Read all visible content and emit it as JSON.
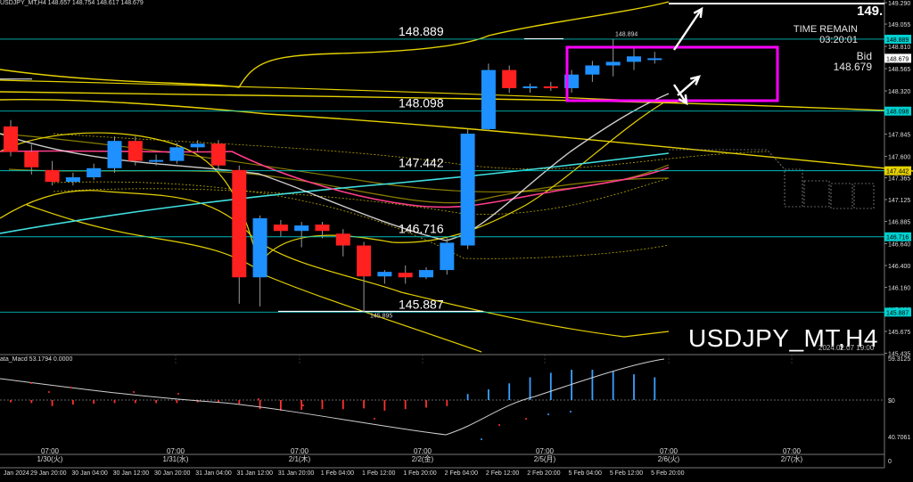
{
  "title_bar": "USDJPY_MT,H4  148.657 148.754 148.617 148.679",
  "symbol_watermark": "USDJPY_MT,H4",
  "watermark_date": "2024.02.07 19:00",
  "time_remain": {
    "label": "TIME REMAIN",
    "value": "03:20:01"
  },
  "bid": {
    "label": "Bid",
    "value": "148.679"
  },
  "big_price_cut": "149.",
  "macd_title": "ata_Macd 53.1794  0.0000",
  "colors": {
    "bull": "#1e90ff",
    "bear": "#ff2020",
    "level": "#00d0d0",
    "band": "#e6d200",
    "highlight": "#ff00ff",
    "ma_cyan": "#40e0e0",
    "ma_pink": "#ff3d8a",
    "ma_white": "#f0f0f0"
  },
  "chart_data": {
    "type": "candlestick",
    "price_axis_ticks": [
      "149.290",
      "149.055",
      "148.810",
      "148.565",
      "148.320",
      "148.085",
      "147.845",
      "147.600",
      "147.365",
      "147.125",
      "146.885",
      "146.640",
      "146.400",
      "146.160",
      "145.920",
      "145.675",
      "145.435"
    ],
    "macd_axis_ticks": [
      "59.3125",
      "$0",
      "40.7061",
      "0"
    ],
    "levels": [
      {
        "label": "148.889",
        "badge": "148.889"
      },
      {
        "label": "148.098",
        "badge": "148.098"
      },
      {
        "label": "147.442",
        "badge": "147.442"
      },
      {
        "label": "146.716",
        "badge": "146.716"
      },
      {
        "label": "145.887",
        "badge": "145.887"
      }
    ],
    "price_badges": [
      {
        "text": "148.679",
        "price": 148.679,
        "color": "#ffffff"
      },
      {
        "text": "148.889",
        "price": 148.889,
        "color": "#00d0d0"
      },
      {
        "text": "148.098",
        "price": 148.098,
        "color": "#00d0d0"
      },
      {
        "text": "147.442",
        "price": 147.442,
        "color": "#e6d200"
      },
      {
        "text": "146.716",
        "price": 146.716,
        "color": "#00d0d0"
      },
      {
        "text": "145.887",
        "price": 145.887,
        "color": "#00d0d0"
      }
    ],
    "annotations": {
      "high_label": "148.894",
      "low_label": "145.895"
    },
    "candles": [
      {
        "o": 147.93,
        "h": 148.0,
        "c": 147.65,
        "l": 147.6
      },
      {
        "o": 147.65,
        "h": 147.73,
        "c": 147.48,
        "l": 147.4
      },
      {
        "o": 147.45,
        "h": 147.55,
        "c": 147.32,
        "l": 147.28
      },
      {
        "o": 147.32,
        "h": 147.42,
        "c": 147.37,
        "l": 147.28
      },
      {
        "o": 147.37,
        "h": 147.52,
        "c": 147.47,
        "l": 147.34
      },
      {
        "o": 147.47,
        "h": 147.82,
        "c": 147.77,
        "l": 147.42
      },
      {
        "o": 147.77,
        "h": 147.82,
        "c": 147.55,
        "l": 147.5
      },
      {
        "o": 147.55,
        "h": 147.62,
        "c": 147.56,
        "l": 147.5
      },
      {
        "o": 147.55,
        "h": 147.75,
        "c": 147.7,
        "l": 147.52
      },
      {
        "o": 147.7,
        "h": 147.78,
        "c": 147.74,
        "l": 147.65
      },
      {
        "o": 147.74,
        "h": 147.78,
        "c": 147.5,
        "l": 147.45
      },
      {
        "o": 147.45,
        "h": 147.5,
        "c": 146.27,
        "l": 145.98
      },
      {
        "o": 146.27,
        "h": 146.95,
        "c": 146.92,
        "l": 145.95
      },
      {
        "o": 146.85,
        "h": 146.9,
        "c": 146.78,
        "l": 146.72
      },
      {
        "o": 146.78,
        "h": 146.88,
        "c": 146.84,
        "l": 146.6
      },
      {
        "o": 146.85,
        "h": 146.88,
        "c": 146.78,
        "l": 146.7
      },
      {
        "o": 146.75,
        "h": 146.8,
        "c": 146.62,
        "l": 146.5
      },
      {
        "o": 146.62,
        "h": 146.66,
        "c": 146.28,
        "l": 145.89
      },
      {
        "o": 146.28,
        "h": 146.35,
        "c": 146.33,
        "l": 146.2
      },
      {
        "o": 146.32,
        "h": 146.4,
        "c": 146.27,
        "l": 146.2
      },
      {
        "o": 146.27,
        "h": 146.38,
        "c": 146.35,
        "l": 146.25
      },
      {
        "o": 146.35,
        "h": 146.7,
        "c": 146.65,
        "l": 146.3
      },
      {
        "o": 146.62,
        "h": 147.9,
        "c": 147.85,
        "l": 146.58
      },
      {
        "o": 147.9,
        "h": 148.62,
        "c": 148.55,
        "l": 147.88
      },
      {
        "o": 148.55,
        "h": 148.6,
        "c": 148.35,
        "l": 148.3
      },
      {
        "o": 148.35,
        "h": 148.4,
        "c": 148.37,
        "l": 148.3
      },
      {
        "o": 148.37,
        "h": 148.42,
        "c": 148.35,
        "l": 148.32
      },
      {
        "o": 148.35,
        "h": 148.55,
        "c": 148.5,
        "l": 148.3
      },
      {
        "o": 148.5,
        "h": 148.65,
        "c": 148.6,
        "l": 148.42
      },
      {
        "o": 148.6,
        "h": 148.894,
        "c": 148.64,
        "l": 148.48
      },
      {
        "o": 148.64,
        "h": 148.8,
        "c": 148.7,
        "l": 148.55
      },
      {
        "o": 148.66,
        "h": 148.75,
        "c": 148.679,
        "l": 148.62
      }
    ],
    "time_labels_top": [
      {
        "time": "07:00",
        "date": "1/30(火)"
      },
      {
        "time": "07:00",
        "date": "1/31(水)"
      },
      {
        "time": "07:00",
        "date": "2/1(木)"
      },
      {
        "time": "07:00",
        "date": "2/2(金)"
      },
      {
        "time": "07:00",
        "date": "2/5(月)"
      },
      {
        "time": "07:00",
        "date": "2/6(火)"
      },
      {
        "time": "07:00",
        "date": "2/7(水)"
      }
    ],
    "time_labels_bottom": [
      "Jan 2024",
      "29 Jan 20:00",
      "30 Jan 04:00",
      "30 Jan 12:00",
      "30 Jan 20:00",
      "31 Jan 04:00",
      "31 Jan 12:00",
      "31 Jan 20:00",
      "1 Feb 04:00",
      "1 Feb 12:00",
      "1 Feb 20:00",
      "2 Feb 04:00",
      "2 Feb 12:00",
      "2 Feb 20:00",
      "5 Feb 04:00",
      "5 Feb 12:00",
      "5 Feb 20:00"
    ],
    "macd_values": [
      -3,
      -4,
      -8,
      -6,
      -5,
      -4,
      -4,
      -4,
      -4,
      -3,
      -3,
      -5,
      -12,
      -14,
      -13,
      -12,
      -12,
      -11,
      -14,
      -12,
      -10,
      -8,
      8,
      14,
      22,
      30,
      36,
      40,
      40,
      38,
      34,
      30
    ]
  }
}
